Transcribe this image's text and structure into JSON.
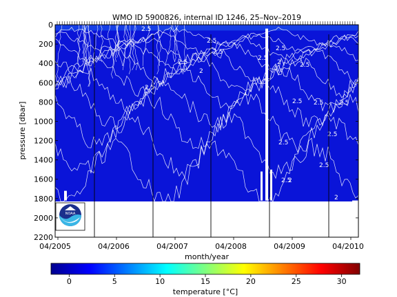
{
  "chart_data": {
    "type": "heatmap",
    "title": "WMO ID 5900826, internal ID 1246, 25–Nov–2019",
    "xlabel": "month/year",
    "ylabel": "pressure [dbar]",
    "x_ticks": [
      "04/2005",
      "04/2006",
      "04/2007",
      "04/2008",
      "04/2009",
      "04/2010"
    ],
    "y_ticks": [
      0,
      200,
      400,
      600,
      800,
      1000,
      1200,
      1400,
      1600,
      1800,
      2000,
      2200
    ],
    "ylim": [
      0,
      2200
    ],
    "y_inverted": true,
    "contour_labels": [
      "2.5",
      "2.5",
      "2.5",
      "2.5",
      "2.5",
      "2.5",
      "2",
      "2.5",
      "2",
      "2.5",
      "2.5",
      "2.5",
      "2.5",
      "2.5",
      "2",
      "2.5",
      "2.5",
      "2.5",
      "2"
    ],
    "colorbar": {
      "label": "temperature [°C]",
      "ticks": [
        0,
        5,
        10,
        15,
        20,
        25,
        30
      ],
      "range": [
        -2,
        32
      ],
      "colormap": "jet"
    },
    "fill_color": "#0a14d8",
    "contour_color": "#ffffff",
    "logo": "NOAA"
  }
}
